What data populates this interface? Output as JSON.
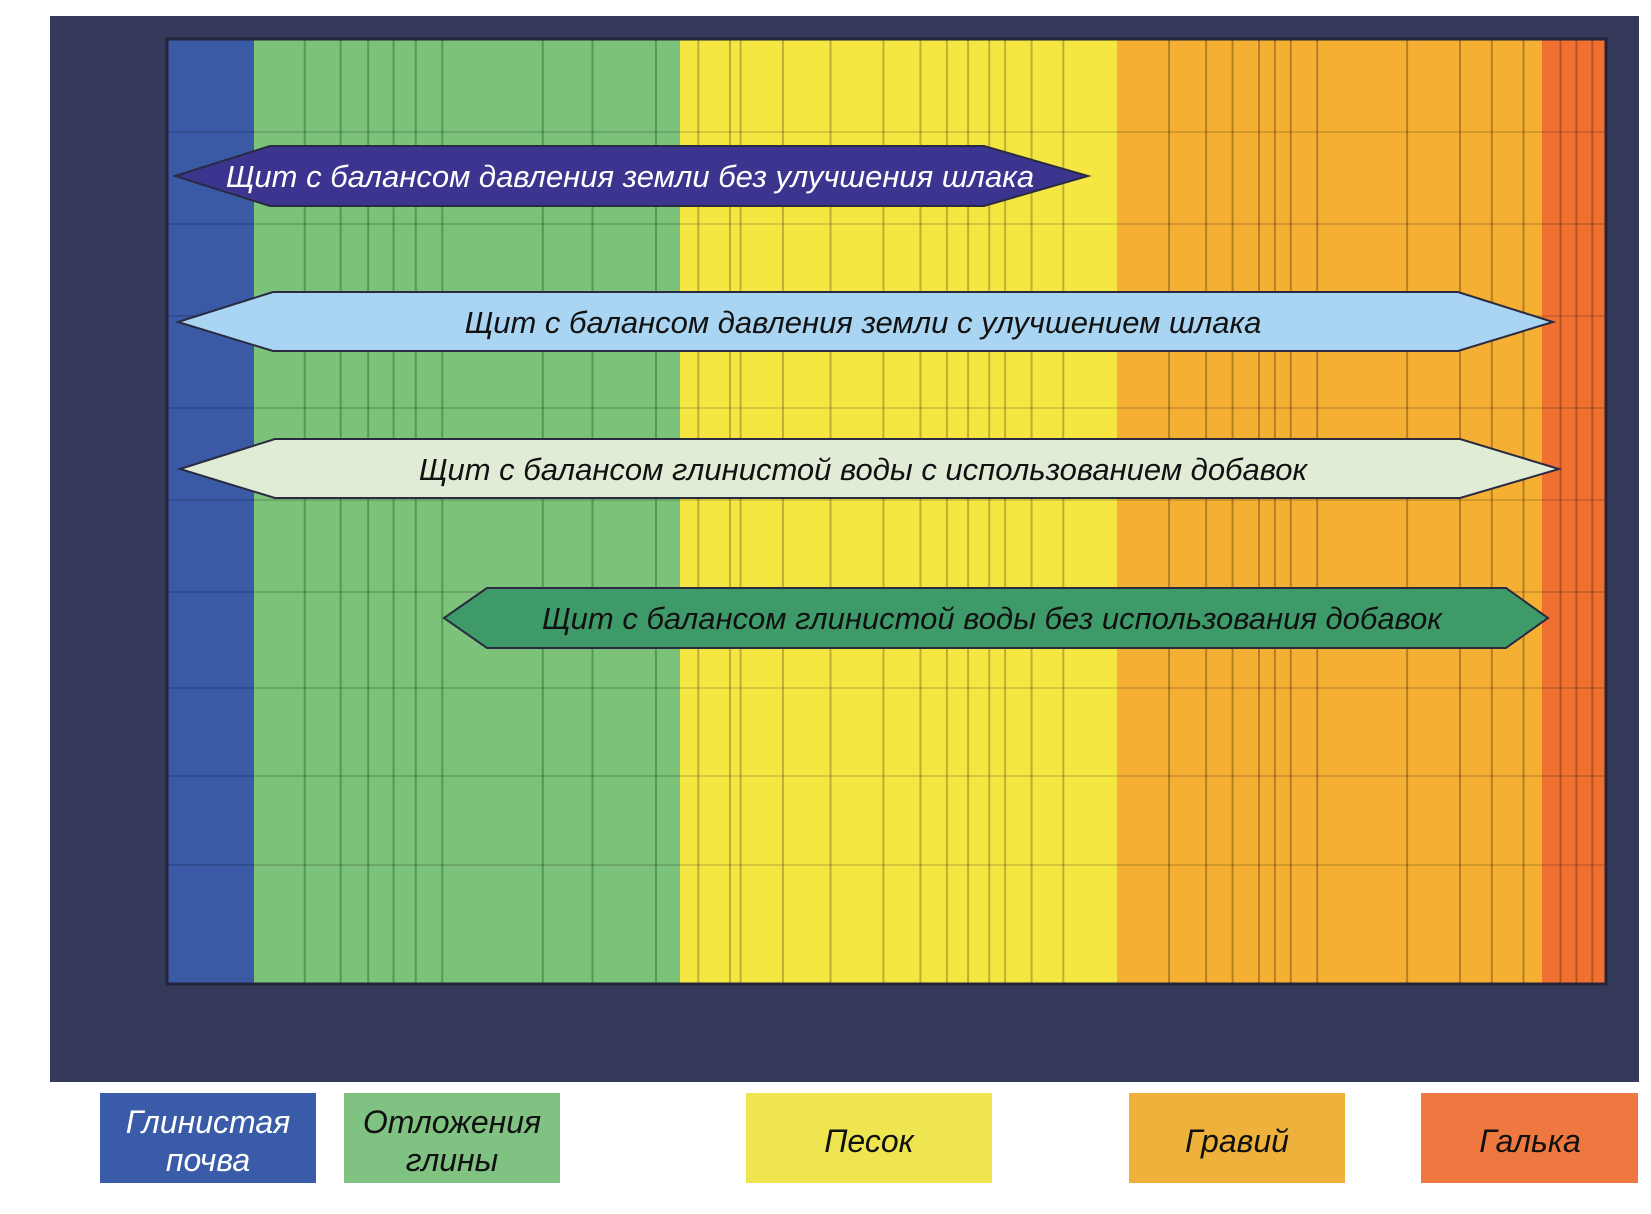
{
  "colors": {
    "frame": "#363a5a",
    "clay_soil": "#3a5aa6",
    "clay_deposits": "#7cc27a",
    "sand": "#f5e642",
    "gravel": "#f5b034",
    "pebbles": "#ef7030"
  },
  "shields": [
    {
      "label": "Щит с балансом давления земли без улучшения шлака",
      "fill": "#3b3590",
      "text_color": "#ffffff"
    },
    {
      "label": "Щит с балансом давления земли с улучшением шлака",
      "fill": "#a9d4f2",
      "text_color": "#111111"
    },
    {
      "label": "Щит с балансом глинистой воды с использованием добавок",
      "fill": "#e1ecd6",
      "text_color": "#111111"
    },
    {
      "label": "Щит с балансом глинистой воды без использования добавок",
      "fill": "#3f9a6a",
      "text_color": "#111111"
    }
  ],
  "legend": [
    {
      "line1": "Глинистая",
      "line2": "почва",
      "fill": "#3a5ca8",
      "text_color": "#ffffff"
    },
    {
      "line1": "Отложения",
      "line2": "глины",
      "fill": "#7fc282",
      "text_color": "#111111"
    },
    {
      "line1": "Песок",
      "line2": "",
      "fill": "#efe550",
      "text_color": "#111111"
    },
    {
      "line1": "Гравий",
      "line2": "",
      "fill": "#eeb23c",
      "text_color": "#111111"
    },
    {
      "line1": "Галька",
      "line2": "",
      "fill": "#ef7840",
      "text_color": "#111111"
    }
  ]
}
